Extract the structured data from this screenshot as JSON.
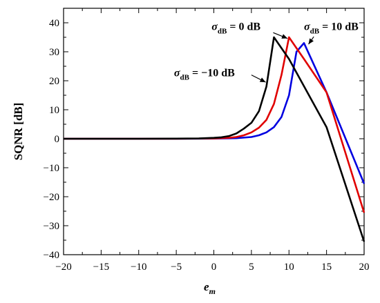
{
  "chart_data": {
    "type": "line",
    "xlabel": "e",
    "xlabel_sub": "m",
    "ylabel": "SQNR [dB]",
    "xlim": [
      -20,
      20
    ],
    "ylim": [
      -40,
      45
    ],
    "x_ticks": [
      -20,
      -15,
      -10,
      -5,
      0,
      5,
      10,
      15,
      20
    ],
    "x_tick_labels": [
      "−20",
      "−15",
      "−10",
      "−5",
      "0",
      "5",
      "10",
      "15",
      "20"
    ],
    "y_ticks": [
      -40,
      -30,
      -20,
      -10,
      0,
      10,
      20,
      30,
      40
    ],
    "y_tick_labels": [
      "−40",
      "−30",
      "−20",
      "−10",
      "0",
      "10",
      "20",
      "30",
      "40"
    ],
    "grid": false,
    "series": [
      {
        "color": "#000000",
        "x": [
          -20,
          -15,
          -10,
          -5,
          -2,
          0,
          1,
          2,
          3,
          4,
          5,
          6,
          7,
          8,
          10,
          15,
          20
        ],
        "y": [
          0,
          0,
          0,
          0.05,
          0.1,
          0.3,
          0.5,
          0.9,
          1.8,
          3.5,
          5.5,
          9.5,
          18,
          35,
          27.5,
          4,
          -35.5
        ]
      },
      {
        "color": "#e00000",
        "x": [
          -20,
          -15,
          -10,
          -5,
          0,
          2,
          3,
          4,
          5,
          6,
          7,
          8,
          9,
          10,
          12,
          15,
          20
        ],
        "y": [
          0,
          0,
          0,
          0,
          0.1,
          0.3,
          0.6,
          1.2,
          2.2,
          3.8,
          6.5,
          12,
          22,
          35,
          27.5,
          16,
          -25.5
        ]
      },
      {
        "color": "#0000e0",
        "x": [
          -20,
          -15,
          -10,
          -5,
          0,
          3,
          5,
          6,
          7,
          8,
          9,
          10,
          11,
          12,
          15,
          20
        ],
        "y": [
          0,
          0,
          0,
          0,
          0.05,
          0.2,
          0.6,
          1.2,
          2.2,
          4,
          7.5,
          15,
          30,
          33,
          16,
          -15.5
        ]
      }
    ],
    "annotations": [
      {
        "prefix": "σ",
        "sub": "dB",
        "suffix": " = 0 dB"
      },
      {
        "prefix": "σ",
        "sub": "dB",
        "suffix": " = 10 dB"
      },
      {
        "prefix": "σ",
        "sub": "dB",
        "suffix": " = −10 dB"
      }
    ]
  }
}
